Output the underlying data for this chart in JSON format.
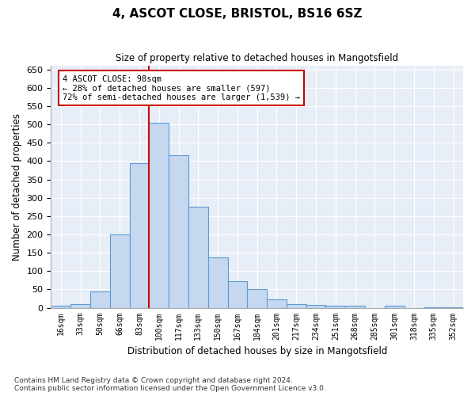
{
  "title1": "4, ASCOT CLOSE, BRISTOL, BS16 6SZ",
  "title2": "Size of property relative to detached houses in Mangotsfield",
  "xlabel": "Distribution of detached houses by size in Mangotsfield",
  "ylabel": "Number of detached properties",
  "categories": [
    "16sqm",
    "33sqm",
    "50sqm",
    "66sqm",
    "83sqm",
    "100sqm",
    "117sqm",
    "133sqm",
    "150sqm",
    "167sqm",
    "184sqm",
    "201sqm",
    "217sqm",
    "234sqm",
    "251sqm",
    "268sqm",
    "285sqm",
    "301sqm",
    "318sqm",
    "335sqm",
    "352sqm"
  ],
  "values": [
    5,
    10,
    45,
    200,
    395,
    505,
    415,
    275,
    138,
    73,
    50,
    22,
    10,
    7,
    6,
    5,
    0,
    5,
    0,
    2,
    2
  ],
  "bar_color": "#c5d8f0",
  "bar_edge_color": "#5b9bd5",
  "marker_bin_index": 5,
  "marker_color": "#cc0000",
  "annotation_line1": "4 ASCOT CLOSE: 98sqm",
  "annotation_line2": "← 28% of detached houses are smaller (597)",
  "annotation_line3": "72% of semi-detached houses are larger (1,539) →",
  "annotation_box_color": "#cc0000",
  "ylim": [
    0,
    660
  ],
  "yticks": [
    0,
    50,
    100,
    150,
    200,
    250,
    300,
    350,
    400,
    450,
    500,
    550,
    600,
    650
  ],
  "background_color": "#e8eef7",
  "grid_color": "#ffffff",
  "footer1": "Contains HM Land Registry data © Crown copyright and database right 2024.",
  "footer2": "Contains public sector information licensed under the Open Government Licence v3.0."
}
